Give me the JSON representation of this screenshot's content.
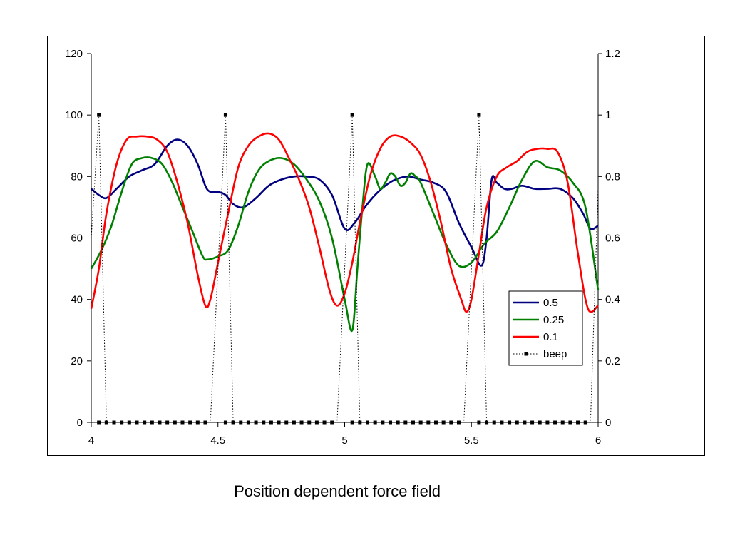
{
  "caption": "Position dependent force field",
  "chart_data": {
    "type": "line",
    "title": "",
    "xlabel": "",
    "ylabel": "",
    "xlim": [
      4,
      6
    ],
    "ylim": [
      0,
      120
    ],
    "y2lim": [
      0,
      1.2
    ],
    "x_ticks": [
      "4",
      "4.5",
      "5",
      "5.5",
      "6"
    ],
    "y_ticks": [
      "0",
      "20",
      "40",
      "60",
      "80",
      "100",
      "120"
    ],
    "y2_ticks": [
      "0",
      "0.2",
      "0.4",
      "0.6",
      "0.8",
      "1",
      "1.2"
    ],
    "grid": false,
    "legend": "right",
    "series": [
      {
        "name": "0.5",
        "axis": "left",
        "color": "#000080",
        "x": [
          4,
          4.03,
          4.06,
          4.1,
          4.15,
          4.2,
          4.25,
          4.3,
          4.34,
          4.38,
          4.42,
          4.45,
          4.47,
          4.5,
          4.53,
          4.56,
          4.6,
          4.65,
          4.7,
          4.75,
          4.8,
          4.85,
          4.9,
          4.95,
          5,
          5.04,
          5.08,
          5.12,
          5.16,
          5.2,
          5.25,
          5.3,
          5.35,
          5.4,
          5.45,
          5.5,
          5.54,
          5.56,
          5.58,
          5.6,
          5.63,
          5.66,
          5.7,
          5.75,
          5.8,
          5.85,
          5.9,
          5.94,
          5.97,
          6
        ],
        "y": [
          76,
          74,
          73,
          76,
          80,
          82,
          84,
          90,
          92,
          90,
          84,
          77,
          75,
          75,
          74,
          71,
          70,
          73,
          77,
          79,
          80,
          80,
          79,
          74,
          63,
          65,
          70,
          74,
          77,
          79,
          80,
          79,
          78,
          75,
          65,
          57,
          51,
          60,
          79,
          78,
          76,
          76,
          77,
          76,
          76,
          76,
          73,
          68,
          63,
          64
        ]
      },
      {
        "name": "0.25",
        "axis": "left",
        "color": "#008000",
        "x": [
          4,
          4.04,
          4.08,
          4.12,
          4.16,
          4.2,
          4.24,
          4.28,
          4.32,
          4.36,
          4.4,
          4.44,
          4.46,
          4.5,
          4.54,
          4.58,
          4.62,
          4.66,
          4.7,
          4.75,
          4.8,
          4.85,
          4.9,
          4.95,
          5,
          5.03,
          5.05,
          5.07,
          5.09,
          5.12,
          5.14,
          5.16,
          5.18,
          5.2,
          5.22,
          5.24,
          5.26,
          5.28,
          5.3,
          5.35,
          5.4,
          5.45,
          5.5,
          5.55,
          5.6,
          5.65,
          5.7,
          5.75,
          5.8,
          5.85,
          5.9,
          5.95,
          6
        ],
        "y": [
          50,
          56,
          64,
          75,
          84,
          86,
          86,
          84,
          78,
          70,
          62,
          54,
          53,
          54,
          56,
          64,
          75,
          82,
          85,
          86,
          84,
          79,
          72,
          60,
          40,
          30,
          50,
          70,
          84,
          80,
          76,
          78,
          81,
          80,
          77,
          78,
          81,
          80,
          78,
          68,
          58,
          51,
          52,
          58,
          62,
          70,
          79,
          85,
          83,
          82,
          78,
          70,
          43
        ]
      },
      {
        "name": "0.1",
        "axis": "left",
        "color": "#ff0000",
        "x": [
          4,
          4.03,
          4.06,
          4.1,
          4.14,
          4.18,
          4.22,
          4.26,
          4.3,
          4.34,
          4.38,
          4.42,
          4.45,
          4.47,
          4.5,
          4.54,
          4.58,
          4.62,
          4.66,
          4.7,
          4.74,
          4.78,
          4.82,
          4.86,
          4.9,
          4.94,
          4.97,
          5,
          5.03,
          5.06,
          5.1,
          5.14,
          5.18,
          5.22,
          5.26,
          5.3,
          5.34,
          5.38,
          5.42,
          5.46,
          5.48,
          5.5,
          5.53,
          5.56,
          5.6,
          5.64,
          5.68,
          5.72,
          5.76,
          5.8,
          5.84,
          5.88,
          5.92,
          5.96,
          6
        ],
        "y": [
          37,
          50,
          68,
          84,
          92,
          93,
          93,
          92,
          88,
          78,
          65,
          48,
          38,
          40,
          52,
          68,
          83,
          90,
          93,
          94,
          92,
          86,
          79,
          70,
          57,
          43,
          38,
          42,
          52,
          65,
          80,
          89,
          93,
          93,
          91,
          87,
          78,
          65,
          50,
          40,
          36,
          40,
          55,
          70,
          80,
          83,
          85,
          88,
          89,
          89,
          88,
          78,
          55,
          37,
          38
        ]
      },
      {
        "name": "beep",
        "axis": "right",
        "color": "#000000",
        "style": "dotted",
        "x": [
          4,
          4.03,
          4.06,
          4.09,
          4.12,
          4.15,
          4.18,
          4.21,
          4.24,
          4.27,
          4.3,
          4.33,
          4.36,
          4.39,
          4.42,
          4.45,
          4.47,
          4.53,
          4.56,
          4.59,
          4.62,
          4.65,
          4.68,
          4.71,
          4.74,
          4.77,
          4.8,
          4.83,
          4.86,
          4.89,
          4.92,
          4.95,
          4.97,
          5.03,
          5.06,
          5.09,
          5.12,
          5.15,
          5.18,
          5.21,
          5.24,
          5.27,
          5.3,
          5.33,
          5.36,
          5.39,
          5.42,
          5.45,
          5.47,
          5.53,
          5.56,
          5.59,
          5.62,
          5.65,
          5.68,
          5.71,
          5.74,
          5.77,
          5.8,
          5.83,
          5.86,
          5.89,
          5.92,
          5.95,
          5.97,
          6
        ],
        "y": [
          0.6,
          1,
          0,
          0,
          0,
          0,
          0,
          0,
          0,
          0,
          0,
          0,
          0,
          0,
          0,
          0,
          0,
          1,
          0,
          0,
          0,
          0,
          0,
          0,
          0,
          0,
          0,
          0,
          0,
          0,
          0,
          0,
          0,
          1,
          0,
          0,
          0,
          0,
          0,
          0,
          0,
          0,
          0,
          0,
          0,
          0,
          0,
          0,
          0,
          1,
          0,
          0,
          0,
          0,
          0,
          0,
          0,
          0,
          0,
          0,
          0,
          0,
          0,
          0,
          0,
          0.76
        ],
        "markers": [
          [
            4.03,
            1
          ],
          [
            4.53,
            1
          ],
          [
            5.03,
            1
          ],
          [
            5.53,
            1
          ],
          [
            4.03,
            0
          ],
          [
            4.06,
            0
          ],
          [
            4.09,
            0
          ],
          [
            4.12,
            0
          ],
          [
            4.15,
            0
          ],
          [
            4.18,
            0
          ],
          [
            4.21,
            0
          ],
          [
            4.24,
            0
          ],
          [
            4.27,
            0
          ],
          [
            4.3,
            0
          ],
          [
            4.33,
            0
          ],
          [
            4.36,
            0
          ],
          [
            4.39,
            0
          ],
          [
            4.42,
            0
          ],
          [
            4.45,
            0
          ],
          [
            4.53,
            0
          ],
          [
            4.56,
            0
          ],
          [
            4.59,
            0
          ],
          [
            4.62,
            0
          ],
          [
            4.65,
            0
          ],
          [
            4.68,
            0
          ],
          [
            4.71,
            0
          ],
          [
            4.74,
            0
          ],
          [
            4.77,
            0
          ],
          [
            4.8,
            0
          ],
          [
            4.83,
            0
          ],
          [
            4.86,
            0
          ],
          [
            4.89,
            0
          ],
          [
            4.92,
            0
          ],
          [
            4.95,
            0
          ],
          [
            5.03,
            0
          ],
          [
            5.06,
            0
          ],
          [
            5.09,
            0
          ],
          [
            5.12,
            0
          ],
          [
            5.15,
            0
          ],
          [
            5.18,
            0
          ],
          [
            5.21,
            0
          ],
          [
            5.24,
            0
          ],
          [
            5.27,
            0
          ],
          [
            5.3,
            0
          ],
          [
            5.33,
            0
          ],
          [
            5.36,
            0
          ],
          [
            5.39,
            0
          ],
          [
            5.42,
            0
          ],
          [
            5.45,
            0
          ],
          [
            5.53,
            0
          ],
          [
            5.56,
            0
          ],
          [
            5.59,
            0
          ],
          [
            5.62,
            0
          ],
          [
            5.65,
            0
          ],
          [
            5.68,
            0
          ],
          [
            5.71,
            0
          ],
          [
            5.74,
            0
          ],
          [
            5.77,
            0
          ],
          [
            5.8,
            0
          ],
          [
            5.83,
            0
          ],
          [
            5.86,
            0
          ],
          [
            5.89,
            0
          ],
          [
            5.92,
            0
          ],
          [
            5.95,
            0
          ]
        ]
      }
    ]
  }
}
